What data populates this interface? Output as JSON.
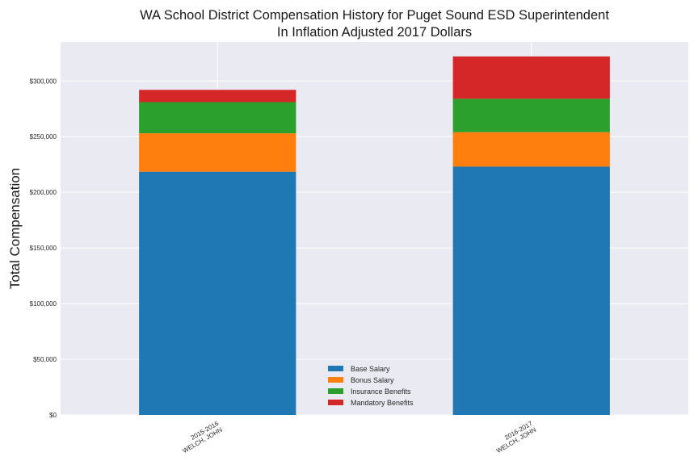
{
  "chart_data": {
    "type": "bar",
    "stacked": true,
    "title": "WA School District Compensation History for Puget Sound ESD Superintendent",
    "subtitle": "In Inflation Adjusted 2017 Dollars",
    "xlabel": "",
    "ylabel": "Total Compensation",
    "ylim": [
      0,
      335000
    ],
    "yticks": [
      "$0",
      "$50,000",
      "$100,000",
      "$150,000",
      "$200,000",
      "$250,000",
      "$300,000"
    ],
    "ytick_values": [
      0,
      50000,
      100000,
      150000,
      200000,
      250000,
      300000
    ],
    "categories": [
      {
        "line1": "2015-2016",
        "line2": "WELCH, JOHN"
      },
      {
        "line1": "2016-2017",
        "line2": "WELCH, JOHN"
      }
    ],
    "series": [
      {
        "name": "Base Salary",
        "color": "#1f77b4",
        "values": [
          218500,
          223000
        ]
      },
      {
        "name": "Bonus Salary",
        "color": "#ff7f0e",
        "values": [
          34500,
          31000
        ]
      },
      {
        "name": "Insurance Benefits",
        "color": "#2ca02c",
        "values": [
          28000,
          30000
        ]
      },
      {
        "name": "Mandatory Benefits",
        "color": "#d62728",
        "values": [
          11000,
          38000
        ]
      }
    ],
    "grid": true,
    "legend_position": "lower-center",
    "background_color": "#eaeaf2"
  }
}
